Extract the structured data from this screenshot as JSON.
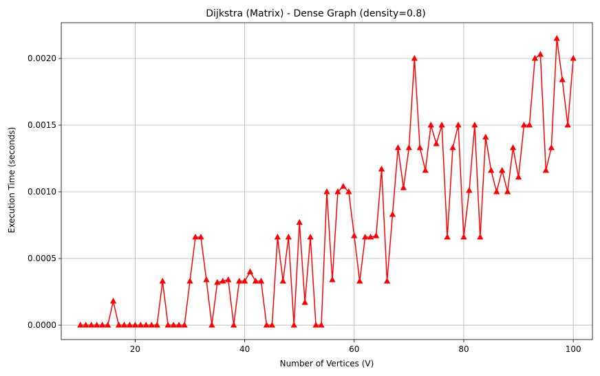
{
  "chart_data": {
    "type": "line",
    "title": "Dijkstra (Matrix) - Dense Graph (density=0.8)",
    "xlabel": "Number of Vertices (V)",
    "ylabel": "Execution Time (seconds)",
    "xlim": [
      6.5,
      103.5
    ],
    "ylim": [
      -0.000108,
      0.002268
    ],
    "grid": true,
    "x_ticks": [
      20,
      40,
      60,
      80,
      100
    ],
    "x_tick_labels": [
      "20",
      "40",
      "60",
      "80",
      "100"
    ],
    "y_ticks": [
      0.0,
      0.0005,
      0.001,
      0.0015,
      0.002
    ],
    "y_tick_labels": [
      "0.0000",
      "0.0005",
      "0.0010",
      "0.0015",
      "0.0020"
    ],
    "series": [
      {
        "color": "#ff0000",
        "marker": "triangle-up",
        "x": [
          10,
          11,
          12,
          13,
          14,
          15,
          16,
          17,
          18,
          19,
          20,
          21,
          22,
          23,
          24,
          25,
          26,
          27,
          28,
          29,
          30,
          31,
          32,
          33,
          34,
          35,
          36,
          37,
          38,
          39,
          40,
          41,
          42,
          43,
          44,
          45,
          46,
          47,
          48,
          49,
          50,
          51,
          52,
          53,
          54,
          55,
          56,
          57,
          58,
          59,
          60,
          61,
          62,
          63,
          64,
          65,
          66,
          67,
          68,
          69,
          70,
          71,
          72,
          73,
          74,
          75,
          76,
          77,
          78,
          79,
          80,
          81,
          82,
          83,
          84,
          85,
          86,
          87,
          88,
          89,
          90,
          91,
          92,
          93,
          94,
          95,
          96,
          97,
          98,
          99,
          100
        ],
        "values": [
          0,
          0,
          0,
          0,
          0,
          0,
          0.00018,
          0,
          0,
          0,
          0,
          0,
          0,
          0,
          0,
          0.00033,
          0,
          0,
          0,
          0,
          0.00033,
          0.00066,
          0.00066,
          0.00034,
          0,
          0.00032,
          0.00033,
          0.00034,
          0,
          0.00033,
          0.00033,
          0.0004,
          0.00033,
          0.00033,
          0,
          0,
          0.00066,
          0.00033,
          0.00066,
          0,
          0.00077,
          0.00017,
          0.00066,
          0,
          0,
          0.001,
          0.00034,
          0.001,
          0.00104,
          0.001,
          0.00067,
          0.00033,
          0.00066,
          0.00066,
          0.00067,
          0.00117,
          0.00033,
          0.00083,
          0.00133,
          0.00103,
          0.00133,
          0.002,
          0.00133,
          0.00116,
          0.0015,
          0.00136,
          0.0015,
          0.00066,
          0.00133,
          0.0015,
          0.00066,
          0.00101,
          0.0015,
          0.00066,
          0.00141,
          0.00116,
          0.001,
          0.00116,
          0.001,
          0.00133,
          0.00111,
          0.0015,
          0.0015,
          0.002,
          0.00203,
          0.00116,
          0.00133,
          0.00215,
          0.00184,
          0.0015,
          0.002
        ]
      }
    ]
  }
}
